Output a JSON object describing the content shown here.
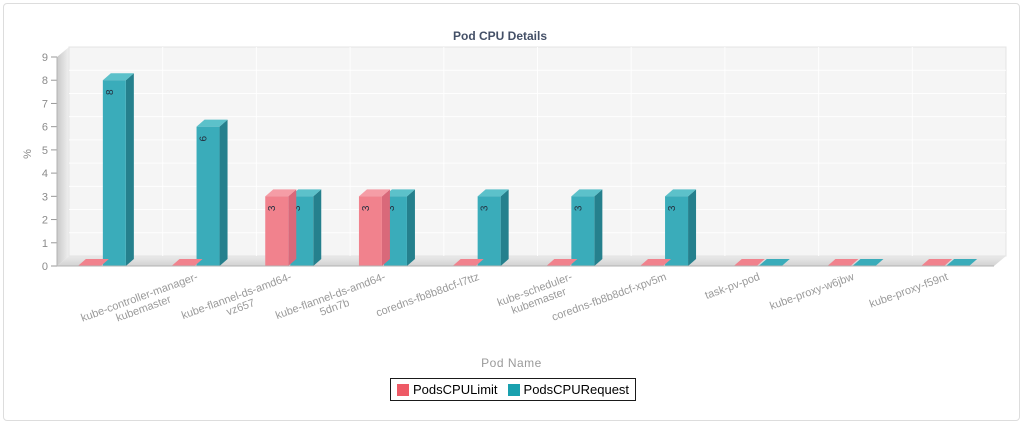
{
  "chart_data": {
    "type": "bar",
    "title": "Pod CPU Details",
    "title_color": "#445067",
    "xlabel": "Pod Name",
    "ylabel": "%",
    "ylim": [
      0,
      9
    ],
    "y_ticks": [
      0,
      1,
      2,
      3,
      4,
      5,
      6,
      7,
      8,
      9
    ],
    "grid": true,
    "legend_position": "bottom",
    "background": "#f5f5f5",
    "style": {
      "wall_edge": "#e4e4e4",
      "floor_top": "#eaeaea",
      "floor_bottom": "#d2d2d2",
      "wall_left_dark": "#c9c9c9",
      "wall_left_light": "#f0f0f0",
      "axis_line": "#b3b3b3",
      "tick_color": "#999999",
      "tick_label_color": "#8b8b8b",
      "category_label_color": "#9a9a9a",
      "value_label_color": "#253040",
      "gridline_color": "rgba(255,255,255,0.9)"
    },
    "categories": [
      "",
      "kube-controller-manager-\nkubemaster",
      "kube-flannel-ds-amd64-\nvz657",
      "kube-flannel-ds-amd64-\n5dn7b",
      "coredns-fb8b8dcf-l7ttz",
      "kube-scheduler-\nkubemaster",
      "coredns-fb8b8dcf-xpv5m",
      "task-pv-pod",
      "kube-proxy-w6jbw",
      "kube-proxy-f59nt"
    ],
    "series": [
      {
        "name": "PodsCPULimit",
        "legend_color": "#ee5a66",
        "front": "#f1828d",
        "side": "#d9697a",
        "top": "#f59da6",
        "values": [
          0,
          0,
          3,
          3,
          0,
          0,
          0,
          0,
          0,
          0
        ]
      },
      {
        "name": "PodsCPURequest",
        "legend_color": "#19a0ae",
        "front": "#3aacba",
        "side": "#25808d",
        "top": "#5cc1ca",
        "values": [
          8,
          6,
          3,
          3,
          3,
          3,
          3,
          0,
          0,
          0
        ]
      }
    ],
    "bar_value_labels_shown": true
  }
}
